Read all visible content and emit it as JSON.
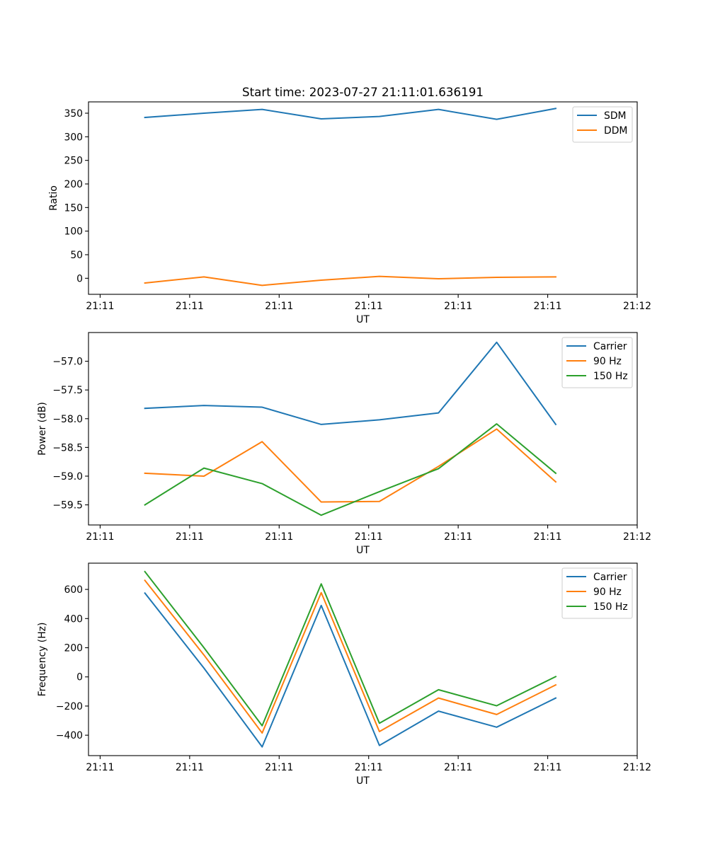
{
  "title": "Start time: 2023-07-27 21:11:01.636191",
  "colors": {
    "blue": "#1f77b4",
    "orange": "#ff7f0e",
    "green": "#2ca02c"
  },
  "chart_data": [
    {
      "type": "line",
      "title": "Start time: 2023-07-27 21:11:01.636191",
      "xlabel": "UT",
      "ylabel": "Ratio",
      "xlim": [
        -0.13,
        6.0
      ],
      "xticks": [
        0,
        1,
        2,
        3,
        4,
        5,
        6
      ],
      "xtick_labels": [
        "21:11",
        "21:11",
        "21:11",
        "21:11",
        "21:11",
        "21:11",
        "21:12"
      ],
      "x": [
        0.5,
        1.16,
        1.81,
        2.47,
        3.12,
        3.78,
        4.43,
        5.09
      ],
      "ylim": [
        -34,
        374
      ],
      "yticks": [
        0,
        50,
        100,
        150,
        200,
        250,
        300,
        350
      ],
      "ytick_labels": [
        "0",
        "50",
        "100",
        "150",
        "200",
        "250",
        "300",
        "350"
      ],
      "legend_position": "upper right",
      "series": [
        {
          "name": "SDM",
          "color": "#1f77b4",
          "values": [
            341,
            350,
            358,
            338,
            343,
            358,
            337,
            360
          ]
        },
        {
          "name": "DDM",
          "color": "#ff7f0e",
          "values": [
            -10,
            3,
            -15,
            -4,
            4,
            -1,
            2,
            3
          ]
        }
      ]
    },
    {
      "type": "line",
      "xlabel": "UT",
      "ylabel": "Power (dB)",
      "xlim": [
        -0.13,
        6.0
      ],
      "xticks": [
        0,
        1,
        2,
        3,
        4,
        5,
        6
      ],
      "xtick_labels": [
        "21:11",
        "21:11",
        "21:11",
        "21:11",
        "21:11",
        "21:11",
        "21:12"
      ],
      "x": [
        0.5,
        1.16,
        1.81,
        2.47,
        3.12,
        3.78,
        4.43,
        5.09
      ],
      "ylim": [
        -59.85,
        -56.5
      ],
      "yticks": [
        -59.5,
        -59.0,
        -58.5,
        -58.0,
        -57.5,
        -57.0
      ],
      "ytick_labels": [
        "−59.5",
        "−59.0",
        "−58.5",
        "−58.0",
        "−57.5",
        "−57.0"
      ],
      "legend_position": "upper right",
      "series": [
        {
          "name": "Carrier",
          "color": "#1f77b4",
          "values": [
            -57.82,
            -57.77,
            -57.8,
            -58.1,
            -58.02,
            -57.9,
            -56.67,
            -58.1
          ]
        },
        {
          "name": "90 Hz",
          "color": "#ff7f0e",
          "values": [
            -58.95,
            -59.0,
            -58.4,
            -59.45,
            -59.44,
            -58.83,
            -58.18,
            -59.1
          ]
        },
        {
          "name": "150 Hz",
          "color": "#2ca02c",
          "values": [
            -59.5,
            -58.86,
            -59.13,
            -59.68,
            -59.27,
            -58.87,
            -58.09,
            -58.95
          ]
        }
      ]
    },
    {
      "type": "line",
      "xlabel": "UT",
      "ylabel": "Frequency (Hz)",
      "xlim": [
        -0.13,
        6.0
      ],
      "xticks": [
        0,
        1,
        2,
        3,
        4,
        5,
        6
      ],
      "xtick_labels": [
        "21:11",
        "21:11",
        "21:11",
        "21:11",
        "21:11",
        "21:11",
        "21:12"
      ],
      "x": [
        0.5,
        1.16,
        1.81,
        2.47,
        3.12,
        3.78,
        4.43,
        5.09
      ],
      "ylim": [
        -540,
        780
      ],
      "yticks": [
        -400,
        -200,
        0,
        200,
        400,
        600
      ],
      "ytick_labels": [
        "−400",
        "−200",
        "0",
        "200",
        "400",
        "600"
      ],
      "legend_position": "upper right",
      "series": [
        {
          "name": "Carrier",
          "color": "#1f77b4",
          "values": [
            575,
            60,
            -480,
            490,
            -470,
            -235,
            -345,
            -145
          ]
        },
        {
          "name": "90 Hz",
          "color": "#ff7f0e",
          "values": [
            662,
            150,
            -385,
            578,
            -375,
            -145,
            -258,
            -55
          ]
        },
        {
          "name": "150 Hz",
          "color": "#2ca02c",
          "values": [
            722,
            200,
            -335,
            638,
            -318,
            -88,
            -198,
            2
          ]
        }
      ]
    }
  ]
}
